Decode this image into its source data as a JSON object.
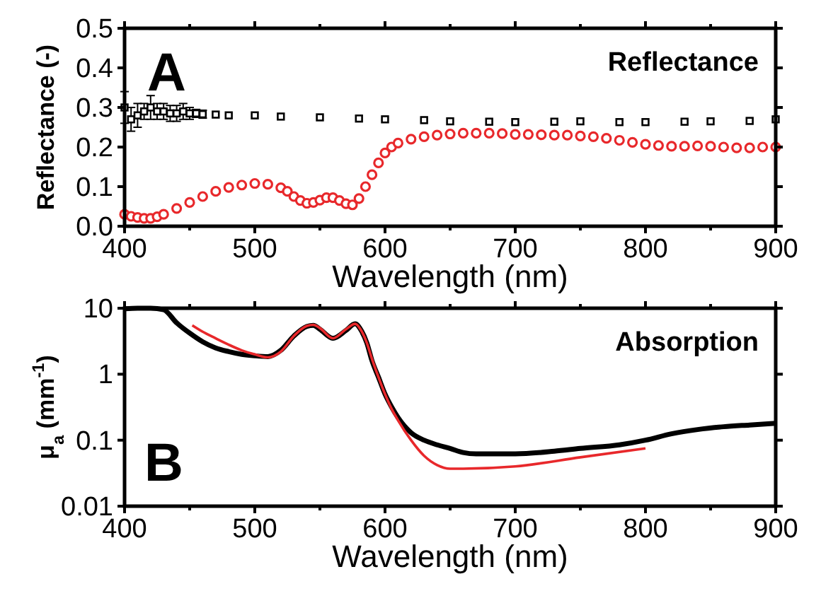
{
  "chart_data": [
    {
      "type": "scatter",
      "xlabel": "Wavelength (nm)",
      "ylabel": "Reflectance (-)",
      "annotations": [
        "A",
        "Reflectance"
      ],
      "xlim": [
        400,
        900
      ],
      "ylim": [
        0,
        0.5
      ],
      "xticks": [
        400,
        {
          "value": 450,
          "label": null
        },
        500,
        {
          "value": 550,
          "label": null
        },
        600,
        {
          "value": 650,
          "label": null
        },
        700,
        {
          "value": 750,
          "label": null
        },
        800,
        {
          "value": 850,
          "label": null
        },
        900
      ],
      "yticks": [
        {
          "value": 0,
          "label": "0.0"
        },
        0.1,
        0.2,
        0.3,
        0.4,
        0.5
      ],
      "grid": false,
      "series": [
        {
          "color": "#000000",
          "marker": "square",
          "x": [
            400,
            405,
            410,
            415,
            420,
            425,
            430,
            435,
            440,
            445,
            450,
            455,
            460,
            470,
            480,
            500,
            520,
            550,
            580,
            600,
            630,
            650,
            680,
            700,
            730,
            750,
            780,
            800,
            830,
            850,
            880,
            900
          ],
          "values": [
            0.3,
            0.27,
            0.28,
            0.29,
            0.3,
            0.29,
            0.29,
            0.285,
            0.285,
            0.29,
            0.285,
            0.285,
            0.283,
            0.282,
            0.28,
            0.28,
            0.277,
            0.275,
            0.272,
            0.27,
            0.268,
            0.265,
            0.264,
            0.263,
            0.264,
            0.265,
            0.263,
            0.263,
            0.264,
            0.265,
            0.266,
            0.27
          ],
          "errors": [
            0.04,
            0.03,
            0.03,
            0.02,
            0.03,
            0.02,
            0.02,
            0.02,
            0.02,
            0.02,
            0.015,
            0.01,
            0.01,
            null,
            null,
            null,
            null,
            null,
            null,
            null,
            null,
            null,
            null,
            null,
            null,
            null,
            null,
            null,
            null,
            null,
            null,
            null
          ]
        },
        {
          "color": "#e8282b",
          "marker": "circle",
          "x": [
            400,
            405,
            410,
            415,
            420,
            425,
            430,
            440,
            450,
            460,
            470,
            480,
            490,
            500,
            510,
            520,
            525,
            530,
            535,
            540,
            545,
            550,
            555,
            560,
            565,
            570,
            575,
            580,
            585,
            590,
            595,
            600,
            605,
            610,
            620,
            630,
            640,
            650,
            660,
            670,
            680,
            690,
            700,
            710,
            720,
            730,
            740,
            750,
            760,
            770,
            780,
            790,
            800,
            810,
            820,
            830,
            840,
            850,
            860,
            870,
            880,
            890,
            900
          ],
          "values": [
            0.03,
            0.025,
            0.022,
            0.02,
            0.02,
            0.024,
            0.03,
            0.045,
            0.06,
            0.075,
            0.088,
            0.098,
            0.104,
            0.108,
            0.106,
            0.097,
            0.088,
            0.075,
            0.065,
            0.058,
            0.06,
            0.066,
            0.072,
            0.072,
            0.065,
            0.057,
            0.054,
            0.07,
            0.1,
            0.13,
            0.16,
            0.185,
            0.2,
            0.21,
            0.22,
            0.226,
            0.23,
            0.233,
            0.235,
            0.235,
            0.235,
            0.234,
            0.232,
            0.232,
            0.231,
            0.23,
            0.23,
            0.228,
            0.226,
            0.222,
            0.217,
            0.212,
            0.207,
            0.204,
            0.202,
            0.202,
            0.203,
            0.202,
            0.2,
            0.198,
            0.198,
            0.2,
            0.2
          ]
        }
      ]
    },
    {
      "type": "line",
      "xlabel": "Wavelength (nm)",
      "ylabel": "μ$_{a}$ (mm$^{-1}$)",
      "annotations": [
        "B",
        "Absorption"
      ],
      "log": "y",
      "xlim": [
        400,
        900
      ],
      "ylim": [
        0.01,
        10
      ],
      "xticks": [
        400,
        {
          "value": 450,
          "label": null
        },
        500,
        {
          "value": 550,
          "label": null
        },
        600,
        {
          "value": 650,
          "label": null
        },
        700,
        {
          "value": 750,
          "label": null
        },
        800,
        {
          "value": 850,
          "label": null
        },
        900
      ],
      "yticks": [
        0.01,
        0.1,
        1,
        10
      ],
      "grid": false,
      "series": [
        {
          "color": "#000000",
          "x": [
            400,
            410,
            420,
            430,
            440,
            450,
            460,
            470,
            480,
            490,
            500,
            510,
            520,
            530,
            540,
            545,
            550,
            560,
            570,
            577,
            582,
            586,
            590,
            595,
            600,
            605,
            610,
            620,
            630,
            640,
            650,
            660,
            670,
            700,
            730,
            750,
            780,
            800,
            820,
            840,
            860,
            880,
            900
          ],
          "values": [
            9.8,
            10,
            10,
            9.5,
            6,
            4.2,
            3.1,
            2.5,
            2.2,
            2,
            1.9,
            1.85,
            2.3,
            3.8,
            5.3,
            5.5,
            4.8,
            3.5,
            4.6,
            5.8,
            4.5,
            3,
            1.6,
            0.9,
            0.5,
            0.32,
            0.22,
            0.13,
            0.1,
            0.085,
            0.075,
            0.065,
            0.062,
            0.062,
            0.068,
            0.075,
            0.085,
            0.1,
            0.125,
            0.145,
            0.16,
            0.17,
            0.18
          ]
        },
        {
          "color": "#e8282b",
          "x": [
            452,
            460,
            470,
            480,
            490,
            500,
            510,
            520,
            530,
            540,
            545,
            550,
            560,
            570,
            577,
            582,
            586,
            590,
            595,
            600,
            605,
            610,
            620,
            630,
            640,
            650,
            660,
            700,
            750,
            800
          ],
          "values": [
            5.5,
            4.4,
            3.5,
            2.8,
            2.3,
            2.0,
            1.8,
            2.2,
            3.8,
            5.4,
            5.6,
            5.0,
            3.5,
            4.8,
            5.8,
            4.5,
            3,
            1.7,
            0.9,
            0.5,
            0.3,
            0.2,
            0.1,
            0.058,
            0.042,
            0.037,
            0.037,
            0.04,
            0.055,
            0.075
          ]
        }
      ]
    }
  ]
}
